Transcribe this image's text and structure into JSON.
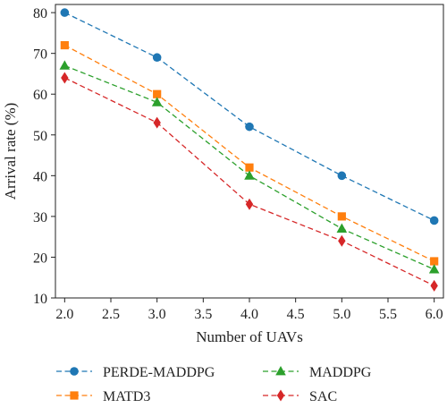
{
  "chart_data": {
    "type": "line",
    "title": "",
    "xlabel": "Number of UAVs",
    "ylabel": "Arrival rate (%)",
    "xlim": [
      1.9,
      6.1
    ],
    "ylim": [
      10,
      82
    ],
    "x_ticks": [
      "2.0",
      "2.5",
      "3.0",
      "3.5",
      "4.0",
      "4.5",
      "5.0",
      "5.5",
      "6.0"
    ],
    "y_ticks": [
      "10",
      "20",
      "30",
      "40",
      "50",
      "60",
      "70",
      "80"
    ],
    "grid": false,
    "legend_position": "bottom",
    "x": [
      2.0,
      3.0,
      4.0,
      5.0,
      6.0
    ],
    "series": [
      {
        "name": "PERDE-MADDPG",
        "values": [
          80,
          69,
          52,
          40,
          29
        ],
        "color": "#1f77b4",
        "marker": "circle"
      },
      {
        "name": "MATD3",
        "values": [
          72,
          60,
          42,
          30,
          19
        ],
        "color": "#ff7f0e",
        "marker": "square"
      },
      {
        "name": "MADDPG",
        "values": [
          67,
          58,
          40,
          27,
          17
        ],
        "color": "#2ca02c",
        "marker": "triangle"
      },
      {
        "name": "SAC",
        "values": [
          64,
          53,
          33,
          24,
          13
        ],
        "color": "#d62728",
        "marker": "diamond"
      }
    ]
  }
}
